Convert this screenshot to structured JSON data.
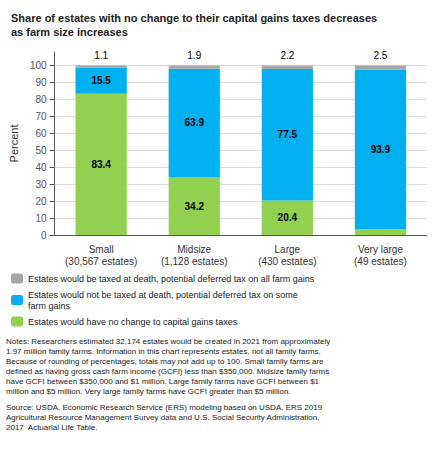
{
  "chart_data": {
    "type": "bar",
    "title": "Share of estates with no change to their capital gains taxes decreases\nas farm size increases",
    "ylabel": "Percent",
    "categories": [
      "Small\n(30,567 estates)",
      "Midsize\n(1,128 estates)",
      "Large\n(430 estates)",
      "Very large\n(49 estates)"
    ],
    "series": [
      {
        "name": "Estates would have no change to capital gains taxes",
        "color": "#92D050",
        "values": [
          83.4,
          34.2,
          20.4,
          3.6
        ],
        "value_labels": [
          "83.4",
          "34.2",
          "20.4",
          null
        ]
      },
      {
        "name": "Estates would not be taxed at death, potential deferred tax on some\nfarm gains",
        "color": "#00B0F0",
        "values": [
          15.5,
          63.9,
          77.5,
          93.9
        ]
      },
      {
        "name": "Estates would be taxed at death, potential deferred tax on all farm gains",
        "color": "#A6A6A6",
        "values": [
          1.1,
          1.9,
          2.2,
          2.5
        ]
      }
    ],
    "stacked": true,
    "data_labels": true,
    "legend": "bottom",
    "grid": true,
    "ylim": [
      0,
      108
    ],
    "yticks": [
      0,
      10,
      20,
      30,
      40,
      50,
      60,
      70,
      80,
      90,
      100
    ],
    "notes": "Notes: Researchers estimated 32,174 estates would be created in 2021 from approximately\n1.97 million family farms. Information in this chart represents estates, not all family farms.\nBecause of rounding of percentages, totals may not add up to 100. Small family farms are\ndefined as having gross cash farm income (GCFI) less than $350,000. Midsize family farms\nhave GCFI between $350,000 and $1 million. Large family farms have GCFI between $1\nmillion and $5 million. Very large family farms have GCFI greater than $5 million.",
    "source": "Source: USDA, Economic Research Service (ERS) modeling based on USDA, ERS 2019\nAgricultural Resource Management Survey data and U.S. Social Security Administration,\n2017  Actuarial Life Table."
  }
}
